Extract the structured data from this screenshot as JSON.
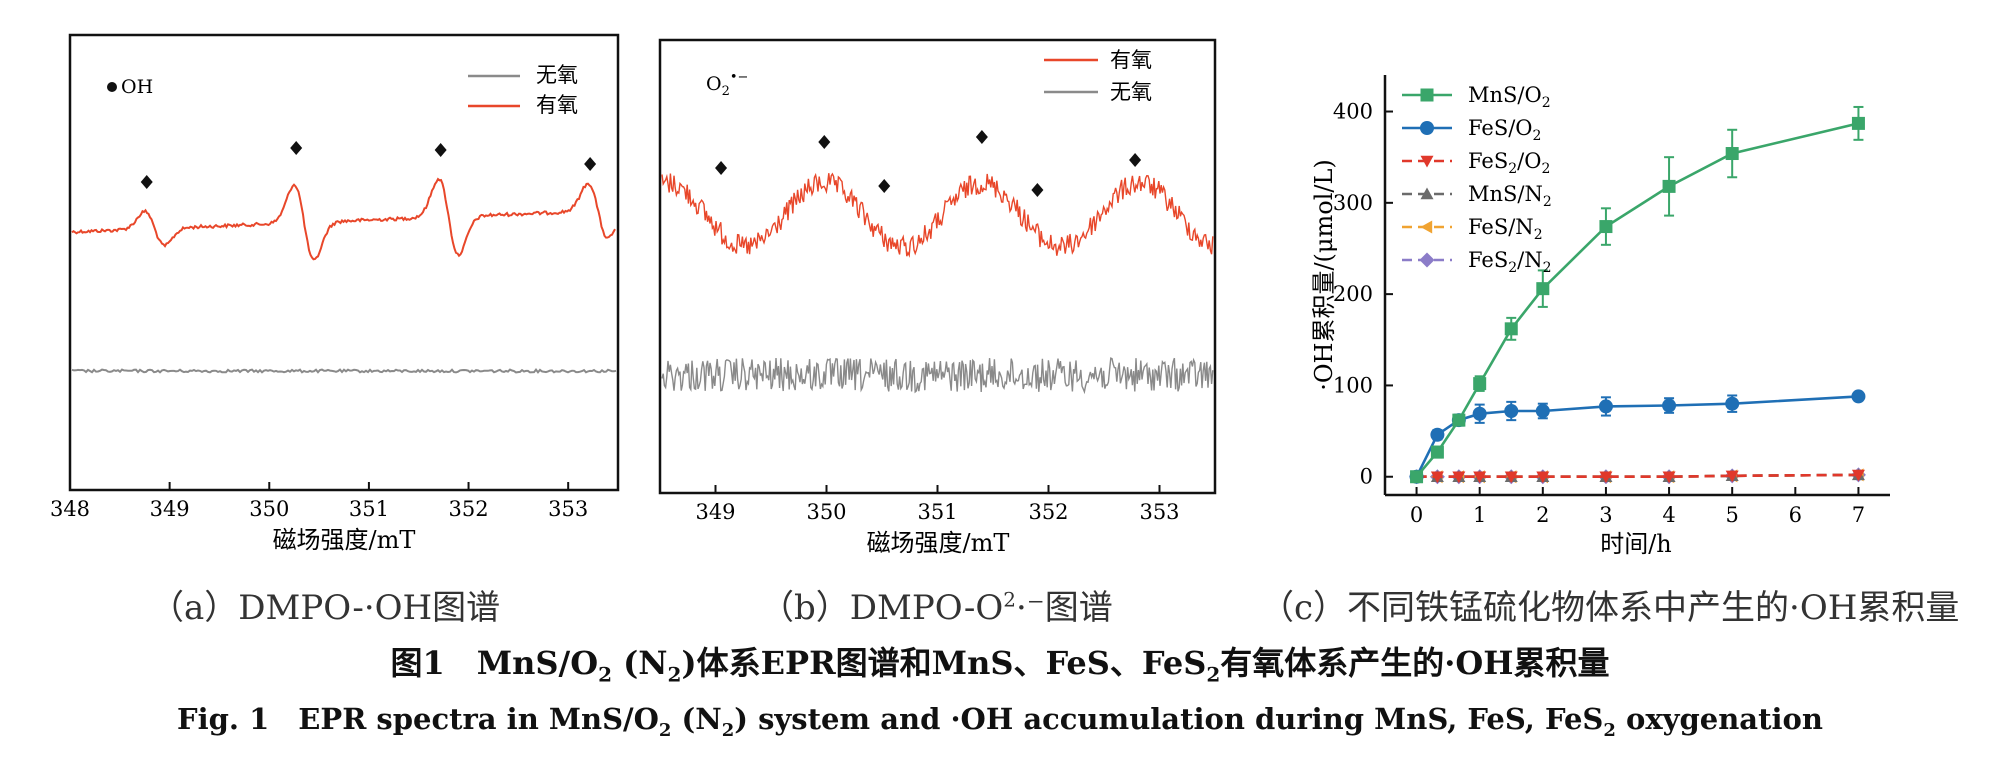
{
  "colors": {
    "aerobic": "#e8472a",
    "anaerobic": "#8a8a8a",
    "axis": "#111111",
    "MnS_O2": "#3aa66a",
    "FeS_O2": "#1f6fb5",
    "FeS2_O2": "#e0382b",
    "MnS_N2": "#6b6b6b",
    "FeS_N2": "#f0a331",
    "FeS2_N2": "#8b7cc8"
  },
  "chart_data": [
    {
      "id": "a",
      "type": "line",
      "chart_kind": "EPR spectrum",
      "title": "",
      "xlabel": "磁场强度/mT",
      "ylabel": "",
      "xlim": [
        348,
        353.5
      ],
      "xticks": [
        "348",
        "349",
        "350",
        "351",
        "352",
        "353"
      ],
      "species_label": "•OH",
      "legend_position": "top-right",
      "legend": [
        "无氧",
        "有氧"
      ],
      "peak_markers": [
        348.75,
        350.25,
        351.7,
        353.2
      ],
      "series": [
        {
          "name": "有氧",
          "baseline": 0.58,
          "peaks_x": [
            348.75,
            350.25,
            351.7,
            353.2
          ],
          "peak_amplitude": [
            0.25,
            0.55,
            0.55,
            0.4
          ],
          "noise": "low"
        },
        {
          "name": "无氧",
          "baseline": 0.0,
          "noise": "very low"
        }
      ]
    },
    {
      "id": "b",
      "type": "line",
      "chart_kind": "EPR spectrum",
      "title": "",
      "xlabel": "磁场强度/mT",
      "ylabel": "",
      "xlim": [
        348.5,
        353.5
      ],
      "xticks": [
        "349",
        "350",
        "351",
        "352",
        "353"
      ],
      "species_label_main": "O",
      "species_label_sub": "2",
      "species_label_sup": "•−",
      "legend_position": "top-right",
      "legend": [
        "有氧",
        "无氧"
      ],
      "peak_markers": [
        349.05,
        349.98,
        350.52,
        351.4,
        351.9,
        352.78
      ],
      "series": [
        {
          "name": "有氧",
          "baseline": 0.6,
          "peaks_x": [
            349.98,
            351.4,
            352.78
          ],
          "noise": "high"
        },
        {
          "name": "无氧",
          "baseline": 0.0,
          "noise": "high"
        }
      ]
    },
    {
      "id": "c",
      "type": "line",
      "title": "",
      "xlabel": "时间/h",
      "ylabel": "·OH累积量/(μmol/L)",
      "xlim": [
        -0.5,
        7.5
      ],
      "ylim": [
        -20,
        440
      ],
      "xticks": [
        "0",
        "1",
        "2",
        "3",
        "4",
        "5",
        "6",
        "7"
      ],
      "yticks": [
        "0",
        "100",
        "200",
        "300",
        "400"
      ],
      "legend_position": "top-left",
      "x": [
        0,
        0.33,
        0.67,
        1,
        1.5,
        2,
        3,
        4,
        5,
        7
      ],
      "series": [
        {
          "name": "MnS/O2",
          "label_main": "MnS/O",
          "label_sub": "2",
          "marker": "square",
          "dashed": false,
          "values": [
            0,
            27,
            62,
            102,
            162,
            206,
            274,
            318,
            354,
            387
          ],
          "errors": [
            0,
            6,
            5,
            8,
            12,
            20,
            20,
            32,
            26,
            18
          ]
        },
        {
          "name": "FeS/O2",
          "label_main": "FeS/O",
          "label_sub": "2",
          "marker": "circle",
          "dashed": false,
          "values": [
            0,
            46,
            62,
            69,
            72,
            72,
            77,
            78,
            80,
            88
          ],
          "errors": [
            0,
            5,
            6,
            10,
            10,
            8,
            10,
            8,
            9,
            4
          ]
        },
        {
          "name": "FeS2/O2",
          "label_main": "FeS",
          "label_sub": "2",
          "label_tail": "/O",
          "label_sub2": "2",
          "marker": "triangle-down",
          "dashed": true,
          "values": [
            0,
            0,
            0,
            0,
            0,
            0,
            0,
            0,
            1,
            2
          ],
          "errors": [
            0,
            0,
            0,
            0,
            0,
            0,
            0,
            0,
            0,
            0
          ]
        },
        {
          "name": "MnS/N2",
          "label_main": "MnS/N",
          "label_sub": "2",
          "marker": "triangle-up",
          "dashed": true,
          "values": [
            0,
            0,
            0,
            0,
            0,
            0,
            0,
            0,
            1,
            2
          ],
          "errors": [
            0,
            0,
            0,
            0,
            0,
            0,
            0,
            0,
            0,
            0
          ]
        },
        {
          "name": "FeS/N2",
          "label_main": "FeS/N",
          "label_sub": "2",
          "marker": "triangle-left",
          "dashed": true,
          "values": [
            0,
            0,
            0,
            0,
            0,
            0,
            0,
            0,
            1,
            2
          ],
          "errors": [
            0,
            0,
            0,
            0,
            0,
            0,
            0,
            0,
            0,
            0
          ]
        },
        {
          "name": "FeS2/N2",
          "label_main": "FeS",
          "label_sub": "2",
          "label_tail": "/N",
          "label_sub2": "2",
          "marker": "diamond",
          "dashed": true,
          "values": [
            0,
            0,
            0,
            0,
            0,
            0,
            0,
            0,
            1,
            2
          ],
          "errors": [
            0,
            0,
            0,
            0,
            0,
            0,
            0,
            0,
            0,
            0
          ]
        }
      ]
    }
  ],
  "captions": {
    "a": "（a）DMPO-·OH图谱",
    "b_pre": "（b）DMPO-O",
    "b_sup": "2",
    "b_post": "·⁻图谱",
    "c": "（c）不同铁锰硫化物体系中产生的·OH累积量",
    "fig_cn_1": "图1　MnS/O",
    "fig_cn_sub": "2",
    "fig_cn_2": " (N",
    "fig_cn_sub2": "2",
    "fig_cn_3": ")体系EPR图谱和MnS、FeS、FeS",
    "fig_cn_sub3": "2",
    "fig_cn_4": "有氧体系产生的·OH累积量",
    "fig_en_1": "Fig. 1　EPR spectra in MnS/O",
    "fig_en_sub": "2",
    "fig_en_2": " (N",
    "fig_en_sub2": "2",
    "fig_en_3": ") system and ·OH accumulation during MnS, FeS, FeS",
    "fig_en_sub3": "2",
    "fig_en_4": " oxygenation"
  }
}
